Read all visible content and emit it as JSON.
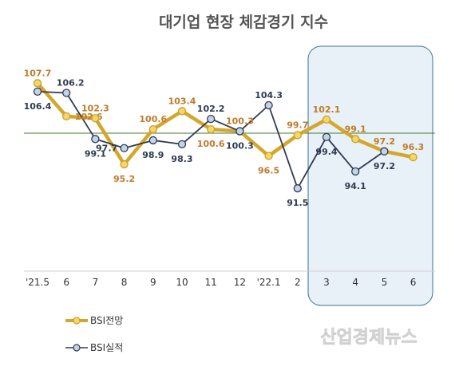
{
  "chart_data": {
    "type": "line",
    "title": "대기업 현장 체감경기 지수",
    "categories": [
      "'21.5",
      "6",
      "7",
      "8",
      "9",
      "10",
      "11",
      "12",
      "'22.1",
      "2",
      "3",
      "4",
      "5",
      "6"
    ],
    "series": [
      {
        "name": "BSI전망",
        "color": "#d4a72c",
        "values": [
          107.7,
          102.6,
          102.3,
          95.2,
          100.6,
          103.4,
          100.6,
          100.3,
          96.5,
          99.7,
          102.1,
          99.1,
          97.2,
          96.3
        ],
        "labels": [
          "107.7",
          "102.6",
          "102.3",
          "95.2",
          "100.6",
          "103.4",
          "100.6",
          "100.3",
          "96.5",
          "99.7",
          "102.1",
          "99.1",
          "97.2",
          "96.3"
        ]
      },
      {
        "name": "BSI실적",
        "color": "#2f3b52",
        "values": [
          106.4,
          106.2,
          99.1,
          97.7,
          98.9,
          98.3,
          102.2,
          100.3,
          104.3,
          91.5,
          99.4,
          94.1,
          97.2,
          null
        ],
        "labels": [
          "106.4",
          "106.2",
          "99.1",
          "97.7",
          "98.9",
          "98.3",
          "102.2",
          "100.3",
          "104.3",
          "91.5",
          "99.4",
          "94.1",
          "97.2",
          ""
        ]
      }
    ],
    "reference_line": 100,
    "highlight_range": [
      "3",
      "6"
    ],
    "grid": false,
    "legend_position": "bottom-left"
  },
  "watermark": "산업경제뉴스"
}
